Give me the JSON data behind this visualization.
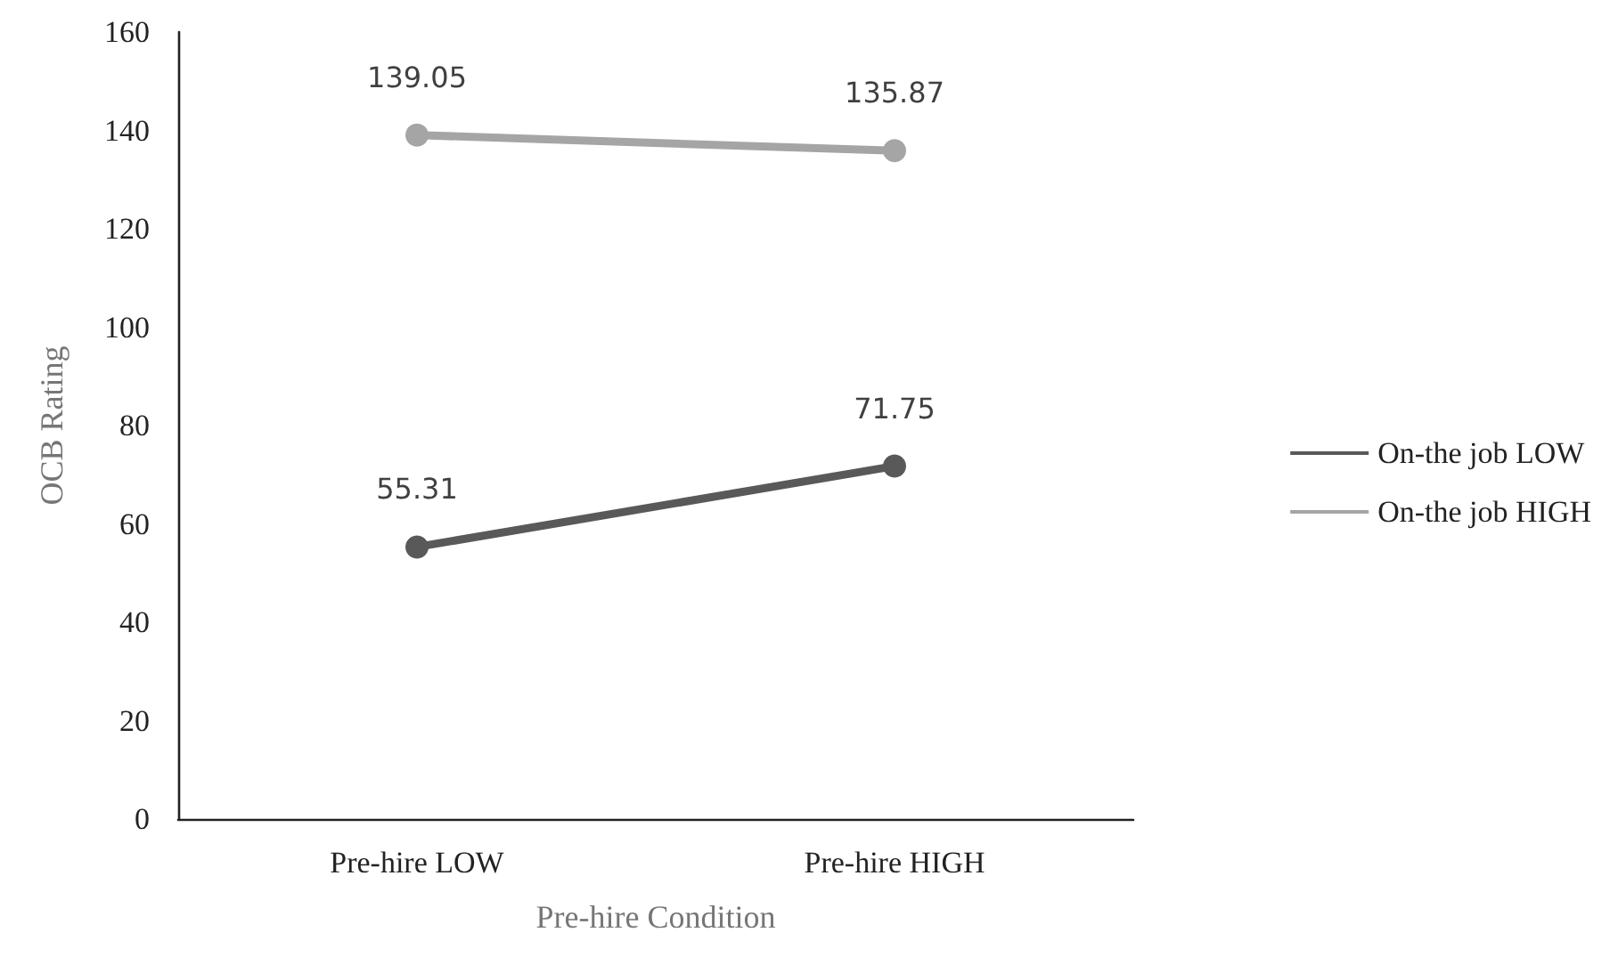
{
  "chart_data": {
    "type": "line",
    "xlabel": "Pre-hire Condition",
    "ylabel": "OCB Rating",
    "categories": [
      "Pre-hire LOW",
      "Pre-hire HIGH"
    ],
    "series": [
      {
        "name": "On-the job LOW",
        "color": "#595959",
        "values": [
          55.31,
          71.75
        ]
      },
      {
        "name": "On-the job HIGH",
        "color": "#a5a5a5",
        "values": [
          139.05,
          135.87
        ]
      }
    ],
    "ylim": [
      0,
      160
    ],
    "yticks": [
      0,
      20,
      40,
      60,
      80,
      100,
      120,
      140,
      160
    ],
    "grid": false,
    "legend": "right",
    "marker": "circle",
    "line_style": "solid",
    "data_labels": true
  }
}
